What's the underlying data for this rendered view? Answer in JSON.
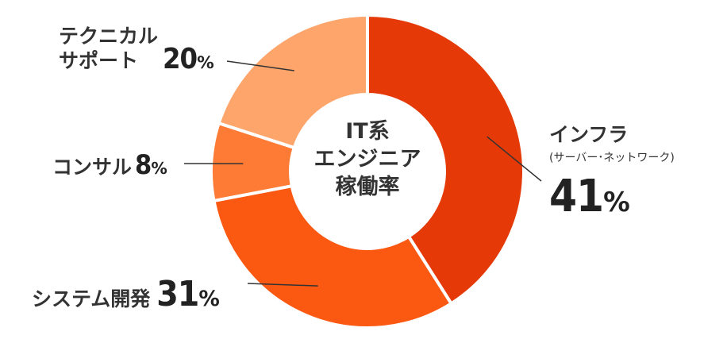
{
  "chart_data": {
    "type": "pie",
    "center_label": [
      "IT系",
      "エンジニア",
      "稼働率"
    ],
    "slices": [
      {
        "label": "インフラ",
        "sublabel": "(サーバー･ネットワーク)",
        "value": 41,
        "unit": "%",
        "color": "#e53a08"
      },
      {
        "label": "システム開発",
        "value": 31,
        "unit": "%",
        "color": "#fb5812"
      },
      {
        "label": "コンサル",
        "value": 8,
        "unit": "%",
        "color": "#fe7b36"
      },
      {
        "label": "テクニカル\nサポート",
        "value": 20,
        "unit": "%",
        "color": "#fea56c"
      }
    ]
  }
}
